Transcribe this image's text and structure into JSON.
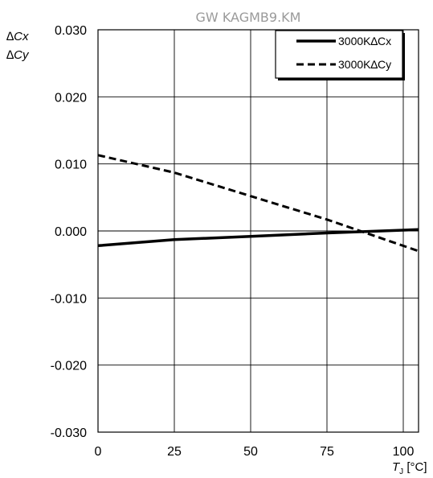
{
  "watermark": "GW KAGMB9.KM",
  "chart_data": {
    "type": "line",
    "title": "",
    "ylabel_lines": [
      "∆Cx",
      "∆Cy"
    ],
    "xlabel_var": "T",
    "xlabel_sub": "J",
    "xlabel_unit": " [°C]",
    "xlim": [
      0,
      105
    ],
    "ylim": [
      -0.03,
      0.03
    ],
    "xticks": [
      0,
      25,
      50,
      75,
      100
    ],
    "xtick_labels": [
      "0",
      "25",
      "50",
      "75",
      "100"
    ],
    "yticks": [
      0.03,
      0.02,
      0.01,
      0.0,
      -0.01,
      -0.02,
      -0.03
    ],
    "ytick_labels": [
      "0.030",
      "0.020",
      "0.010",
      "0.000",
      "-0.010",
      "-0.020",
      "-0.030"
    ],
    "grid": true,
    "legend_position": "top-right",
    "series": [
      {
        "name": "3000K∆Cx",
        "style": "solid",
        "color": "#000000",
        "x": [
          0,
          25,
          50,
          75,
          105
        ],
        "y": [
          -0.0022,
          -0.0013,
          -0.0008,
          -0.0003,
          0.0002
        ]
      },
      {
        "name": "3000K∆Cy",
        "style": "dashed",
        "color": "#000000",
        "x": [
          0,
          25,
          50,
          75,
          105
        ],
        "y": [
          0.0113,
          0.0087,
          0.0052,
          0.0017,
          -0.003
        ]
      }
    ]
  }
}
